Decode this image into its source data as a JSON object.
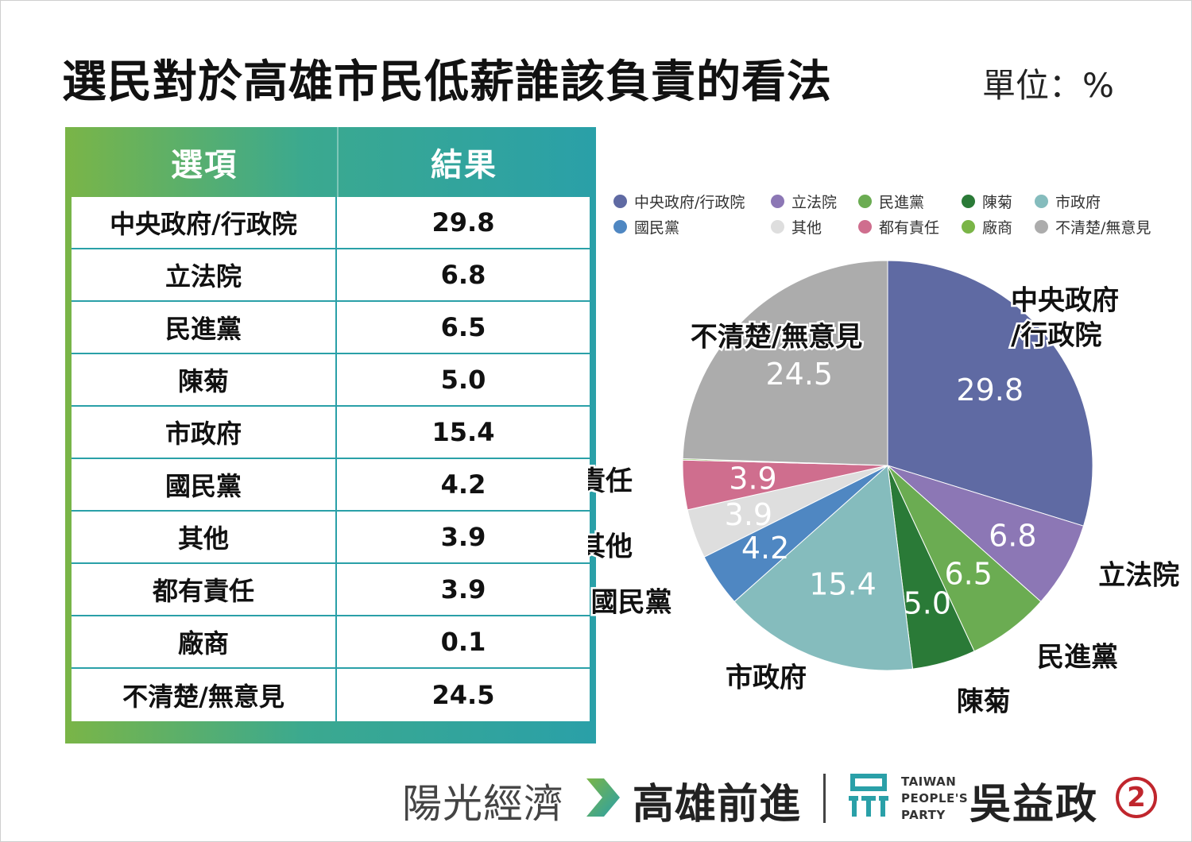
{
  "header": {
    "title": "選民對於高雄市民低薪誰該負責的看法",
    "unit": "單位：%"
  },
  "table": {
    "headers": [
      "選項",
      "結果"
    ],
    "rows": [
      [
        "中央政府/行政院",
        "29.8"
      ],
      [
        "立法院",
        "6.8"
      ],
      [
        "民進黨",
        "6.5"
      ],
      [
        "陳菊",
        "5.0"
      ],
      [
        "市政府",
        "15.4"
      ],
      [
        "國民黨",
        "4.2"
      ],
      [
        "其他",
        "3.9"
      ],
      [
        "都有責任",
        "3.9"
      ],
      [
        "廠商",
        "0.1"
      ],
      [
        "不清楚/無意見",
        "24.5"
      ]
    ]
  },
  "chart_data": {
    "type": "pie",
    "categories": [
      "中央政府/行政院",
      "立法院",
      "民進黨",
      "陳菊",
      "市政府",
      "國民黨",
      "其他",
      "都有責任",
      "廠商",
      "不清楚/無意見"
    ],
    "values": [
      29.8,
      6.8,
      6.5,
      5.0,
      15.4,
      4.2,
      3.9,
      3.9,
      0.1,
      24.5
    ],
    "value_labels": [
      "29.8",
      "6.8",
      "6.5",
      "5.0",
      "15.4",
      "4.2",
      "3.9",
      "3.9",
      "",
      "24.5"
    ],
    "slice_labels": [
      "中央政府\n/行政院",
      "立法院",
      "民進黨",
      "陳菊",
      "市政府",
      "國民黨",
      "其他",
      "都有責任",
      "",
      "不清楚/無意見"
    ],
    "colors": [
      "#5f6aa3",
      "#8c77b5",
      "#6bac52",
      "#2a7a37",
      "#85bcbd",
      "#4f87c2",
      "#dedede",
      "#cf6e8e",
      "#7ab547",
      "#acacac"
    ],
    "legend_position": "top",
    "start_angle_deg": 0,
    "direction": "clockwise"
  },
  "footer": {
    "slogan_left": "陽光經濟",
    "slogan_right": "高雄前進",
    "party_lines": [
      "TAIWAN",
      "PEOPLE'S",
      "PARTY"
    ],
    "candidate": "吳益政",
    "number": "2",
    "logo_color": "#2aa0a8",
    "arrow_colors": [
      "#7ab547",
      "#2aa0a8"
    ]
  }
}
